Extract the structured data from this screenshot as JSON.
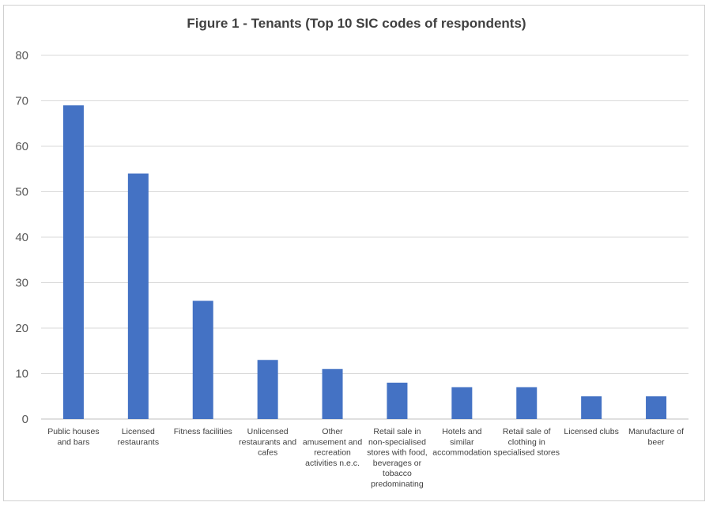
{
  "chart_data": {
    "type": "bar",
    "title": "Figure 1 - Tenants (Top 10 SIC codes of respondents)",
    "xlabel": "",
    "ylabel": "",
    "ylim": [
      0,
      80
    ],
    "yticks": [
      0,
      10,
      20,
      30,
      40,
      50,
      60,
      70,
      80
    ],
    "grid": true,
    "legend": "none",
    "bar_color": "#4472C4",
    "categories": [
      [
        "Public houses",
        "and bars"
      ],
      [
        "Licensed",
        "restaurants"
      ],
      [
        "Fitness facilities"
      ],
      [
        "Unlicensed",
        "restaurants and",
        "cafes"
      ],
      [
        "Other",
        "amusement and",
        "recreation",
        "activities n.e.c."
      ],
      [
        "Retail sale in",
        "non-specialised",
        "stores with food,",
        "beverages or",
        "tobacco",
        "predominating"
      ],
      [
        "Hotels and",
        "similar",
        "accommodation"
      ],
      [
        "Retail sale of",
        "clothing in",
        "specialised stores"
      ],
      [
        "Licensed clubs"
      ],
      [
        "Manufacture of",
        "beer"
      ]
    ],
    "values": [
      69,
      54,
      26,
      13,
      11,
      8,
      7,
      7,
      5,
      5
    ]
  }
}
